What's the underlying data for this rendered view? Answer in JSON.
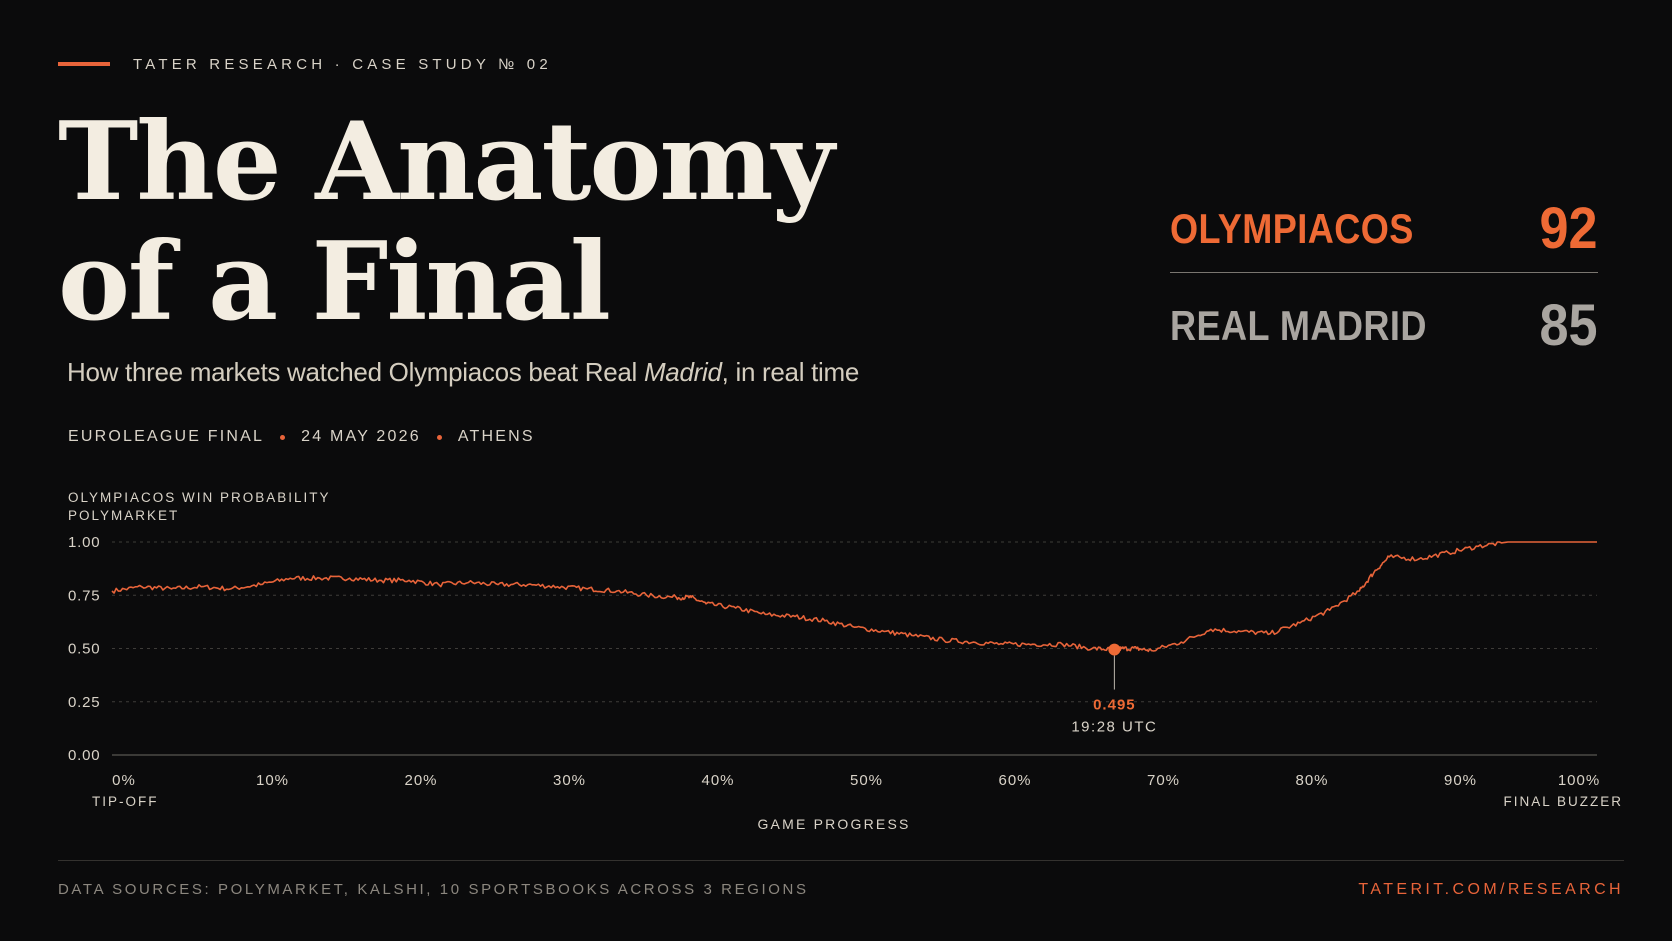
{
  "header": {
    "kicker": "TATER RESEARCH · CASE STUDY № 02",
    "title_line1": "The Anatomy",
    "title_line2": "of a Final",
    "subtitle_pre": "How three markets watched Olympiacos beat Real ",
    "subtitle_italic": "Madrid",
    "subtitle_post": ", in real time",
    "meta": [
      "EUROLEAGUE FINAL",
      "24 MAY 2026",
      "ATHENS"
    ]
  },
  "scoreboard": [
    {
      "team": "OLYMPIACOS",
      "score": "92",
      "color": "#ee6a35"
    },
    {
      "team": "REAL MADRID",
      "score": "85",
      "color": "#a9a5a0"
    }
  ],
  "chart_data": {
    "type": "line",
    "title_line1": "OLYMPIACOS WIN PROBABILITY",
    "title_line2": "POLYMARKET",
    "xlabel": "GAME PROGRESS",
    "ylabel": "",
    "xlim": [
      0,
      100
    ],
    "ylim": [
      0,
      1
    ],
    "x_ticks": [
      0,
      10,
      20,
      30,
      40,
      50,
      60,
      70,
      80,
      90,
      100
    ],
    "x_tick_labels": [
      "0%",
      "10%",
      "20%",
      "30%",
      "40%",
      "50%",
      "60%",
      "70%",
      "80%",
      "90%",
      "100%"
    ],
    "x_sublabels": {
      "start": "TIP-OFF",
      "end": "FINAL BUZZER"
    },
    "y_ticks": [
      0,
      0.25,
      0.5,
      0.75,
      1.0
    ],
    "y_tick_labels": [
      "0.00",
      "0.25",
      "0.50",
      "0.75",
      "1.00"
    ],
    "grid": "horizontal dashed",
    "line_color": "#e8643a",
    "series": [
      {
        "x": [
          0,
          2,
          4,
          6,
          8,
          10,
          12,
          14,
          16,
          18,
          20,
          22,
          24,
          26,
          28,
          30,
          32,
          34,
          36,
          38,
          39,
          40,
          42,
          44,
          46,
          48,
          50,
          52,
          54,
          56,
          58,
          60,
          62,
          64,
          66,
          67.5,
          68,
          69,
          70,
          72,
          74,
          76,
          78,
          80,
          82,
          84,
          85,
          86,
          88,
          90,
          92,
          94,
          96,
          98,
          100
        ],
        "y": [
          0.77,
          0.79,
          0.78,
          0.79,
          0.78,
          0.8,
          0.83,
          0.83,
          0.83,
          0.82,
          0.82,
          0.8,
          0.81,
          0.8,
          0.8,
          0.79,
          0.78,
          0.77,
          0.75,
          0.74,
          0.74,
          0.71,
          0.69,
          0.66,
          0.65,
          0.63,
          0.6,
          0.58,
          0.56,
          0.54,
          0.53,
          0.52,
          0.52,
          0.52,
          0.5,
          0.495,
          0.5,
          0.5,
          0.49,
          0.53,
          0.59,
          0.58,
          0.57,
          0.62,
          0.68,
          0.77,
          0.86,
          0.93,
          0.92,
          0.95,
          0.98,
          1.0,
          1.0,
          1.0,
          1.0
        ]
      }
    ],
    "annotation": {
      "x": 67.5,
      "y": 0.495,
      "value_label": "0.495",
      "time_label": "19:28 UTC"
    }
  },
  "footer": {
    "sources": "DATA SOURCES: POLYMARKET, KALSHI, 10 SPORTSBOOKS ACROSS 3 REGIONS",
    "site": "TATERIT.COM/RESEARCH"
  }
}
